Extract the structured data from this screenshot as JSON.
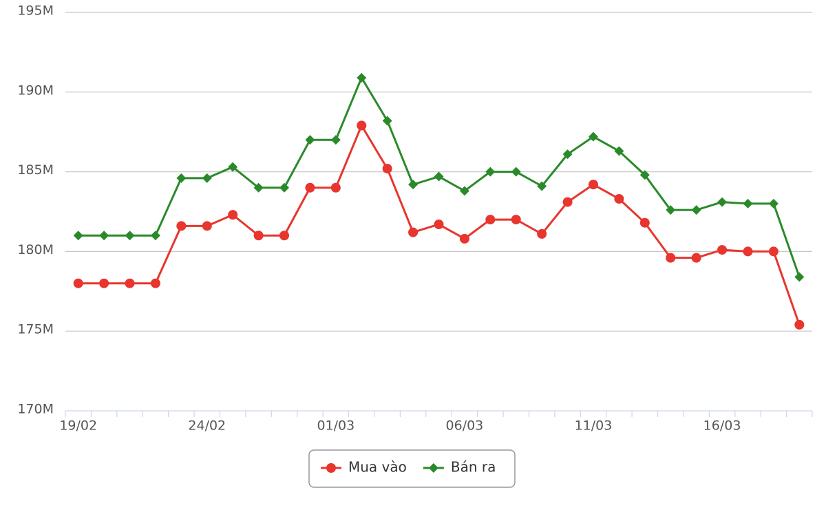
{
  "chart_data": {
    "type": "line",
    "categories": [
      "19/02",
      null,
      null,
      null,
      null,
      "24/02",
      null,
      null,
      null,
      null,
      "01/03",
      null,
      null,
      null,
      null,
      "06/03",
      null,
      null,
      null,
      null,
      "11/03",
      null,
      null,
      null,
      null,
      "16/03",
      null,
      null,
      null
    ],
    "series": [
      {
        "name": "Mua vào",
        "color": "#e8352e",
        "marker": "circle",
        "values": [
          178,
          178,
          178,
          178,
          181.6,
          181.6,
          182.3,
          181,
          181,
          184,
          184,
          187.9,
          185.2,
          181.2,
          181.7,
          180.8,
          182,
          182,
          181.1,
          183.1,
          184.2,
          183.3,
          181.8,
          179.6,
          179.6,
          180.1,
          180,
          180,
          175.4
        ]
      },
      {
        "name": "Bán ra",
        "color": "#2a8a2a",
        "marker": "diamond",
        "values": [
          181,
          181,
          181,
          181,
          184.6,
          184.6,
          185.3,
          184,
          184,
          187,
          187,
          190.9,
          188.2,
          184.2,
          184.7,
          183.8,
          185,
          185,
          184.1,
          186.1,
          187.2,
          186.3,
          184.8,
          182.6,
          182.6,
          183.1,
          183,
          183,
          178.4
        ]
      }
    ],
    "ylim": [
      170,
      195
    ],
    "yticks": [
      {
        "value": 170,
        "label": "170M"
      },
      {
        "value": 175,
        "label": "175M"
      },
      {
        "value": 180,
        "label": "180M"
      },
      {
        "value": 185,
        "label": "185M"
      },
      {
        "value": 190,
        "label": "190M"
      },
      {
        "value": 195,
        "label": "195M"
      }
    ],
    "grid": true
  }
}
